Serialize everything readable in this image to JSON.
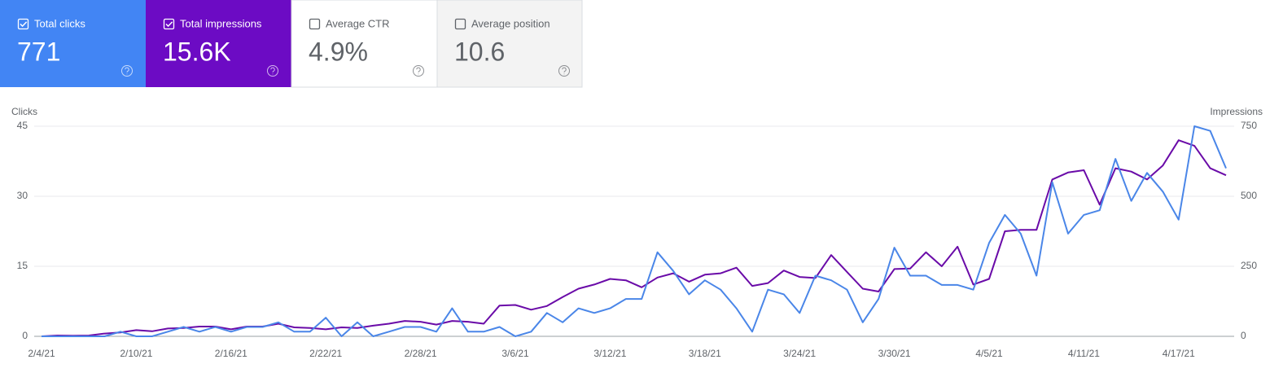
{
  "cards": [
    {
      "label": "Total clicks",
      "value": "771",
      "checked": true,
      "background": "#4285f4",
      "color": "#ffffff"
    },
    {
      "label": "Total impressions",
      "value": "15.6K",
      "checked": true,
      "background": "#6c0bc4",
      "color": "#ffffff"
    },
    {
      "label": "Average CTR",
      "value": "4.9%",
      "checked": false,
      "background": "#ffffff",
      "color": "#5f6368"
    },
    {
      "label": "Average position",
      "value": "10.6",
      "checked": false,
      "background": "#f3f3f3",
      "color": "#5f6368"
    }
  ],
  "chart_data": {
    "type": "line",
    "ylabel": "Clicks",
    "y2label": "Impressions",
    "categories": [
      "2/4/21",
      null,
      null,
      null,
      null,
      null,
      "2/10/21",
      null,
      null,
      null,
      null,
      null,
      "2/16/21",
      null,
      null,
      null,
      null,
      null,
      "2/22/21",
      null,
      null,
      null,
      null,
      null,
      "2/28/21",
      null,
      null,
      null,
      null,
      null,
      "3/6/21",
      null,
      null,
      null,
      null,
      null,
      "3/12/21",
      null,
      null,
      null,
      null,
      null,
      "3/18/21",
      null,
      null,
      null,
      null,
      null,
      "3/24/21",
      null,
      null,
      null,
      null,
      null,
      "3/30/21",
      null,
      null,
      null,
      null,
      null,
      "4/5/21",
      null,
      null,
      null,
      null,
      null,
      "4/11/21",
      null,
      null,
      null,
      null,
      null,
      "4/17/21",
      null,
      null,
      null
    ],
    "series": [
      {
        "color": "#6a0ba8",
        "axis": "y2",
        "values": [
          0,
          3,
          2,
          3,
          10,
          14,
          22,
          18,
          28,
          30,
          35,
          35,
          25,
          35,
          35,
          45,
          32,
          30,
          25,
          32,
          30,
          38,
          45,
          55,
          52,
          42,
          55,
          52,
          45,
          110,
          112,
          95,
          108,
          140,
          170,
          185,
          205,
          200,
          175,
          210,
          225,
          195,
          220,
          225,
          245,
          180,
          190,
          235,
          212,
          208,
          290,
          230,
          170,
          160,
          240,
          242,
          300,
          250,
          320,
          185,
          205,
          375,
          380,
          380,
          560,
          585,
          593,
          470,
          600,
          588,
          560,
          610,
          700,
          680,
          600,
          575
        ]
      },
      {
        "color": "#4a86e8",
        "axis": "y",
        "values": [
          0,
          0,
          0,
          0,
          0,
          1,
          0,
          0,
          1,
          2,
          1,
          2,
          1,
          2,
          2,
          3,
          1,
          1,
          4,
          0,
          3,
          0,
          1,
          2,
          2,
          1,
          6,
          1,
          1,
          2,
          0,
          1,
          5,
          3,
          6,
          5,
          6,
          8,
          8,
          18,
          14,
          9,
          12,
          10,
          6,
          1,
          10,
          9,
          5,
          13,
          12,
          10,
          3,
          8,
          19,
          13,
          13,
          11,
          11,
          10,
          20,
          26,
          22,
          13,
          33,
          22,
          26,
          27,
          38,
          29,
          35,
          31,
          25,
          45,
          44,
          36
        ]
      }
    ],
    "ylim": [
      0,
      45
    ],
    "yticks": [
      0,
      15,
      30,
      45
    ],
    "y2lim": [
      0,
      750
    ],
    "y2ticks": [
      0,
      250,
      500,
      750
    ],
    "grid": true
  }
}
